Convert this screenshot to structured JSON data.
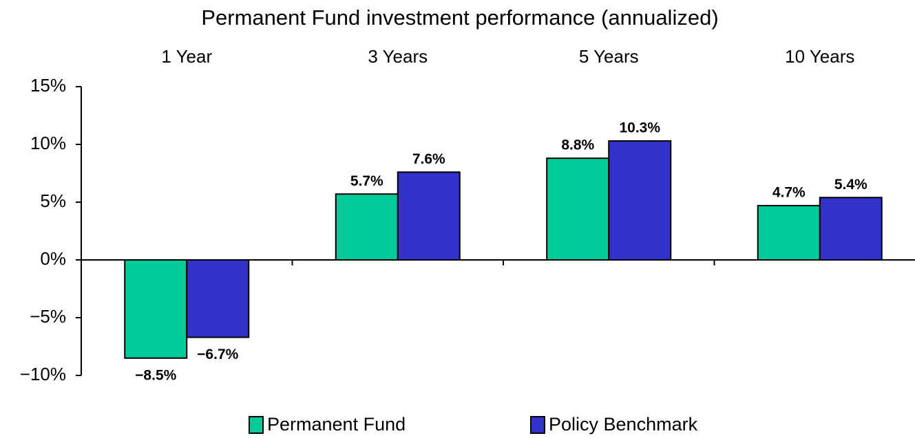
{
  "chart_data": {
    "type": "bar",
    "title": "Permanent Fund investment performance (annualized)",
    "categories": [
      "1 Year",
      "3 Years",
      "5 Years",
      "10 Years"
    ],
    "series": [
      {
        "name": "Permanent Fund",
        "color": "#00cc99",
        "values": [
          -8.5,
          5.7,
          8.8,
          4.7
        ],
        "value_labels": [
          "−8.5%",
          "5.7%",
          "8.8%",
          "4.7%"
        ]
      },
      {
        "name": "Policy Benchmark",
        "color": "#3333cc",
        "values": [
          -6.7,
          7.6,
          10.3,
          5.4
        ],
        "value_labels": [
          "−6.7%",
          "7.6%",
          "10.3%",
          "5.4%"
        ]
      }
    ],
    "ylim": [
      -10,
      15
    ],
    "yticks": [
      {
        "value": -10,
        "label": "−10%"
      },
      {
        "value": -5,
        "label": "−5%"
      },
      {
        "value": 0,
        "label": "0%"
      },
      {
        "value": 5,
        "label": "5%"
      },
      {
        "value": 10,
        "label": "10%"
      },
      {
        "value": 15,
        "label": "15%"
      }
    ],
    "legend": "bottom"
  }
}
